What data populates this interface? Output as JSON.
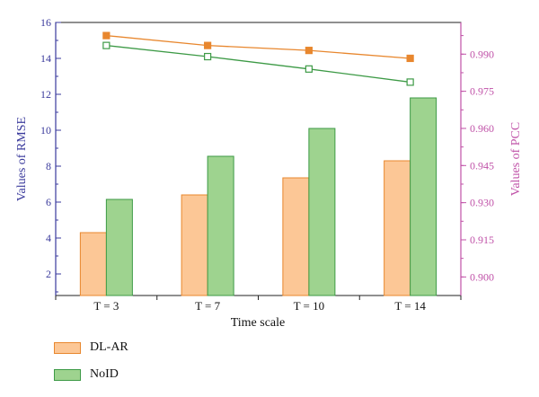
{
  "colors": {
    "left_axis": "#3a3a9c",
    "right_axis": "#c052a8",
    "dlar_fill": "#fcc796",
    "dlar_stroke": "#e8872e",
    "noid_fill": "#9ed38f",
    "noid_stroke": "#3d9a46",
    "axis_black": "#222222"
  },
  "chart_data": {
    "type": "bar",
    "xlabel": "Time scale",
    "categories": [
      "T = 3",
      "T = 7",
      "T = 10",
      "T = 14"
    ],
    "y_left": {
      "label": "Values of RMSE",
      "ylim": [
        0.8,
        16
      ],
      "ticks": [
        2,
        4,
        6,
        8,
        10,
        12,
        14,
        16
      ],
      "tick_labels": [
        "2",
        "4",
        "6",
        "8",
        "10",
        "12",
        "14",
        "16"
      ]
    },
    "y_right": {
      "label": "Values of PCC",
      "ylim": [
        0.8925,
        1.0028
      ],
      "ticks": [
        0.9,
        0.915,
        0.93,
        0.945,
        0.96,
        0.975,
        0.99
      ],
      "tick_labels": [
        "0.900",
        "0.915",
        "0.930",
        "0.945",
        "0.960",
        "0.975",
        "0.990"
      ]
    },
    "bar_series": [
      {
        "name": "DL-AR",
        "axis": "left",
        "values": [
          4.3,
          6.4,
          7.35,
          8.3
        ]
      },
      {
        "name": "NoID",
        "axis": "left",
        "values": [
          6.15,
          8.55,
          10.1,
          11.8
        ]
      }
    ],
    "line_series": [
      {
        "series": "DL-AR",
        "axis": "right",
        "marker": "filled-square",
        "values": [
          0.9975,
          0.9935,
          0.9915,
          0.9883
        ]
      },
      {
        "series": "NoID",
        "axis": "right",
        "marker": "open-square",
        "values": [
          0.9935,
          0.989,
          0.984,
          0.9787
        ]
      }
    ],
    "legend": {
      "position": "bottom-left",
      "items": [
        {
          "label": "DL-AR",
          "series": "DL-AR"
        },
        {
          "label": "NoID",
          "series": "NoID"
        }
      ]
    },
    "grid": false
  }
}
